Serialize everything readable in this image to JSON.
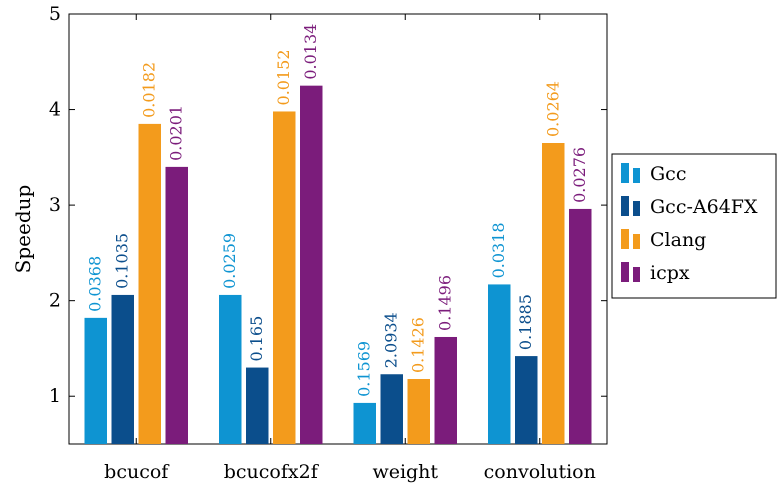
{
  "chart_data": {
    "type": "bar",
    "title": "",
    "xlabel": "",
    "ylabel": "Speedup",
    "ylim": [
      0.5,
      5
    ],
    "yticks": [
      1,
      2,
      3,
      4,
      5
    ],
    "grid": false,
    "legend_position": "right",
    "categories": [
      "bcucof",
      "bcucofx2f",
      "weight",
      "convolution"
    ],
    "series": [
      {
        "name": "Gcc",
        "color": "#0e94d2",
        "values": [
          1.82,
          2.06,
          0.93,
          2.17
        ],
        "labels": [
          "0.0368",
          "0.0259",
          "0.1569",
          "0.0318"
        ]
      },
      {
        "name": "Gcc-A64FX",
        "color": "#0b4e8c",
        "values": [
          2.06,
          1.3,
          1.23,
          1.42
        ],
        "labels": [
          "0.1035",
          "0.165",
          "2.0934",
          "0.1885"
        ]
      },
      {
        "name": "Clang",
        "color": "#f39b1c",
        "values": [
          3.85,
          3.98,
          1.18,
          3.65
        ],
        "labels": [
          "0.0182",
          "0.0152",
          "0.1426",
          "0.0264"
        ]
      },
      {
        "name": "icpx",
        "color": "#7b1c7b",
        "values": [
          3.4,
          4.25,
          1.62,
          2.96
        ],
        "labels": [
          "0.0201",
          "0.0134",
          "0.1496",
          "0.0276"
        ]
      }
    ]
  }
}
